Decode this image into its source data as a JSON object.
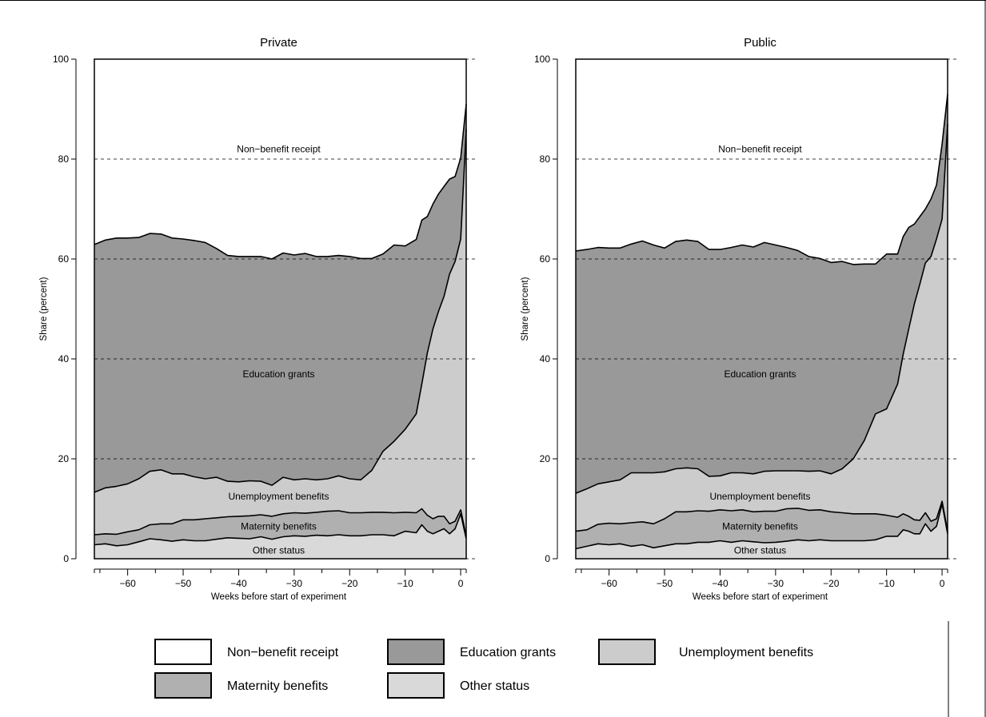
{
  "chart_data": [
    {
      "type": "area",
      "title": "Private",
      "xlabel": "Weeks before start of experiment",
      "ylabel": "Share (percent)",
      "xlim": [
        -66,
        1
      ],
      "ylim": [
        0,
        100
      ],
      "xticks": [
        -60,
        -50,
        -40,
        -30,
        -20,
        -10,
        0
      ],
      "yticks": [
        0,
        20,
        40,
        60,
        80,
        100
      ],
      "grid": "horizontal dashed",
      "stacked": true,
      "x": [
        -66,
        -64,
        -62,
        -60,
        -58,
        -56,
        -54,
        -52,
        -50,
        -48,
        -46,
        -44,
        -42,
        -40,
        -38,
        -36,
        -34,
        -32,
        -30,
        -28,
        -26,
        -24,
        -22,
        -20,
        -18,
        -16,
        -14,
        -12,
        -10,
        -8,
        -7,
        -6,
        -5,
        -4,
        -3,
        -2,
        -1,
        0,
        1
      ],
      "series": [
        {
          "name": "Other status",
          "values": [
            2.8,
            3.0,
            2.6,
            2.8,
            3.4,
            4.0,
            3.8,
            3.5,
            3.8,
            3.6,
            3.6,
            3.9,
            4.2,
            4.1,
            4.0,
            4.4,
            3.9,
            4.4,
            4.6,
            4.5,
            4.7,
            4.6,
            4.8,
            4.6,
            4.6,
            4.8,
            4.8,
            4.6,
            5.5,
            5.2,
            6.8,
            5.5,
            5.0,
            5.5,
            6.0,
            5.0,
            6.0,
            9.0,
            4.0
          ]
        },
        {
          "name": "Maternity benefits",
          "values": [
            2.0,
            2.0,
            2.3,
            2.6,
            2.4,
            2.8,
            3.2,
            3.5,
            4.0,
            4.2,
            4.4,
            4.3,
            4.2,
            4.4,
            4.6,
            4.4,
            4.6,
            4.6,
            4.6,
            4.6,
            4.6,
            4.9,
            4.8,
            4.6,
            4.6,
            4.5,
            4.5,
            4.6,
            3.8,
            4.0,
            3.2,
            3.2,
            3.0,
            3.0,
            2.5,
            2.0,
            1.5,
            0.8,
            0.5
          ]
        },
        {
          "name": "Unemployment benefits",
          "values": [
            8.5,
            9.2,
            9.6,
            9.6,
            10.2,
            10.7,
            10.8,
            10.0,
            9.2,
            8.6,
            8.0,
            8.1,
            7.1,
            6.9,
            7.0,
            6.7,
            6.2,
            7.3,
            6.6,
            6.9,
            6.5,
            6.5,
            7.0,
            6.8,
            6.6,
            8.4,
            12.2,
            14.3,
            16.6,
            19.8,
            25.0,
            32.5,
            38.0,
            41.0,
            44.0,
            50.0,
            52.0,
            54.2,
            81.5
          ]
        },
        {
          "name": "Education grants",
          "values": [
            49.6,
            49.6,
            49.7,
            49.2,
            48.3,
            47.6,
            47.2,
            47.2,
            47.0,
            47.3,
            47.3,
            45.8,
            45.2,
            45.1,
            44.9,
            45.0,
            45.3,
            44.9,
            45.0,
            45.1,
            44.7,
            44.5,
            44.1,
            44.5,
            44.3,
            42.4,
            39.5,
            39.3,
            36.7,
            34.9,
            32.8,
            27.3,
            25.0,
            23.5,
            22.0,
            19.0,
            17.0,
            16.2,
            5.0
          ]
        },
        {
          "name": "Non-benefit receipt",
          "values": [
            37.1,
            36.2,
            35.8,
            35.8,
            35.7,
            34.9,
            35.0,
            35.8,
            36.0,
            36.3,
            36.7,
            37.9,
            39.3,
            39.5,
            39.5,
            39.5,
            40.0,
            38.8,
            39.2,
            38.9,
            39.5,
            39.5,
            39.3,
            39.5,
            39.9,
            39.9,
            39.0,
            37.2,
            37.4,
            36.1,
            32.2,
            31.5,
            29.0,
            27.0,
            25.5,
            24.0,
            23.5,
            19.8,
            9.0
          ]
        }
      ],
      "annotations": [
        "Non−benefit receipt",
        "Education grants",
        "Unemployment benefits",
        "Maternity benefits",
        "Other status"
      ]
    },
    {
      "type": "area",
      "title": "Public",
      "xlabel": "Weeks before start of experiment",
      "ylabel": "Share (percent)",
      "xlim": [
        -66,
        1
      ],
      "ylim": [
        0,
        100
      ],
      "xticks": [
        -60,
        -50,
        -40,
        -30,
        -20,
        -10,
        0
      ],
      "yticks": [
        0,
        20,
        40,
        60,
        80,
        100
      ],
      "grid": "horizontal dashed",
      "stacked": true,
      "x": [
        -66,
        -64,
        -62,
        -60,
        -58,
        -56,
        -54,
        -52,
        -50,
        -48,
        -46,
        -44,
        -42,
        -40,
        -38,
        -36,
        -34,
        -32,
        -30,
        -28,
        -26,
        -24,
        -22,
        -20,
        -18,
        -16,
        -14,
        -12,
        -10,
        -8,
        -7,
        -6,
        -5,
        -4,
        -3,
        -2,
        -1,
        0,
        1
      ],
      "series": [
        {
          "name": "Other status",
          "values": [
            2.0,
            2.5,
            3.0,
            2.8,
            3.0,
            2.5,
            2.8,
            2.2,
            2.6,
            3.0,
            3.0,
            3.3,
            3.3,
            3.6,
            3.3,
            3.6,
            3.4,
            3.2,
            3.3,
            3.5,
            3.8,
            3.6,
            3.8,
            3.6,
            3.6,
            3.6,
            3.6,
            3.8,
            4.5,
            4.5,
            5.8,
            5.5,
            5.0,
            5.0,
            7.0,
            5.5,
            6.5,
            11.0,
            5.0
          ]
        },
        {
          "name": "Maternity benefits",
          "values": [
            3.5,
            3.3,
            3.9,
            4.3,
            4.0,
            4.7,
            4.6,
            4.8,
            5.4,
            6.4,
            6.4,
            6.3,
            6.2,
            6.2,
            6.3,
            6.2,
            6.0,
            6.3,
            6.2,
            6.5,
            6.3,
            6.1,
            6.0,
            5.8,
            5.6,
            5.4,
            5.4,
            5.2,
            4.2,
            3.8,
            3.2,
            3.0,
            2.8,
            2.7,
            2.2,
            2.0,
            1.5,
            0.5,
            0.5
          ]
        },
        {
          "name": "Unemployment benefits",
          "values": [
            7.6,
            8.2,
            8.1,
            8.3,
            8.8,
            10.0,
            9.8,
            10.2,
            9.4,
            8.6,
            8.8,
            8.4,
            7.0,
            6.8,
            7.6,
            7.4,
            7.6,
            8.0,
            8.1,
            7.6,
            7.5,
            7.8,
            7.8,
            7.6,
            8.8,
            11.0,
            14.7,
            20.0,
            21.3,
            26.7,
            32.0,
            37.5,
            43.2,
            47.3,
            50.0,
            53.0,
            56.0,
            56.5,
            81.5
          ]
        },
        {
          "name": "Education grants",
          "values": [
            48.5,
            47.9,
            47.3,
            46.8,
            46.4,
            45.8,
            46.4,
            45.6,
            44.8,
            45.5,
            45.6,
            45.5,
            45.4,
            45.3,
            45.1,
            45.6,
            45.4,
            45.8,
            45.2,
            44.7,
            44.1,
            43.0,
            42.5,
            42.3,
            41.5,
            38.9,
            35.3,
            30.0,
            31.0,
            26.0,
            23.5,
            20.3,
            16.0,
            13.5,
            10.8,
            11.5,
            10.8,
            15.0,
            6.0
          ]
        },
        {
          "name": "Non-benefit receipt",
          "values": [
            38.4,
            38.1,
            37.7,
            37.8,
            37.8,
            37.0,
            36.4,
            37.2,
            37.8,
            36.5,
            36.2,
            36.5,
            38.1,
            38.1,
            37.7,
            37.2,
            37.6,
            36.7,
            37.2,
            37.7,
            38.3,
            39.5,
            39.9,
            40.7,
            40.5,
            41.1,
            41.0,
            41.0,
            39.0,
            39.0,
            35.5,
            33.7,
            33.0,
            31.5,
            30.0,
            28.0,
            25.2,
            17.0,
            7.0
          ]
        }
      ],
      "annotations": [
        "Non−benefit receipt",
        "Education grants",
        "Unemployment benefits",
        "Maternity benefits",
        "Other status"
      ]
    }
  ],
  "legend": [
    {
      "label": "Non−benefit receipt",
      "color": "#ffffff"
    },
    {
      "label": "Education grants",
      "color": "#999999"
    },
    {
      "label": "Unemployment benefits",
      "color": "#cccccc"
    },
    {
      "label": "Maternity benefits",
      "color": "#b0b0b0"
    },
    {
      "label": "Other status",
      "color": "#d9d9d9"
    }
  ],
  "colors": {
    "Other status": "#d9d9d9",
    "Maternity benefits": "#b0b0b0",
    "Unemployment benefits": "#cccccc",
    "Education grants": "#999999",
    "Non-benefit receipt": "#ffffff"
  }
}
